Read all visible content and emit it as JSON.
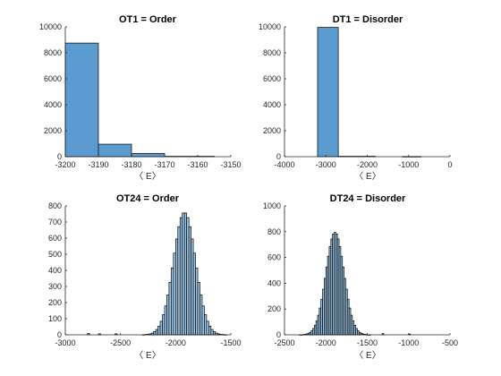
{
  "chart_data": [
    {
      "type": "bar",
      "title": "OT1 = Order",
      "xlabel": "〈 E〉",
      "ylabel": "",
      "xlim": [
        -3200,
        -3150
      ],
      "ylim": [
        0,
        10000
      ],
      "xticks": [
        -3200,
        -3190,
        -3180,
        -3170,
        -3160,
        -3150
      ],
      "yticks": [
        0,
        2000,
        4000,
        6000,
        8000,
        10000
      ],
      "bins": [
        {
          "x0": -3200,
          "x1": -3190,
          "value": 8750
        },
        {
          "x0": -3190,
          "x1": -3180,
          "value": 960
        },
        {
          "x0": -3180,
          "x1": -3170,
          "value": 250
        },
        {
          "x0": -3170,
          "x1": -3155,
          "value": 30
        }
      ],
      "color": "#5b9bd0"
    },
    {
      "type": "bar",
      "title": "DT1 = Disorder",
      "xlabel": "〈 E〉",
      "ylabel": "",
      "xlim": [
        -4000,
        0
      ],
      "ylim": [
        0,
        10000
      ],
      "xticks": [
        -4000,
        -3000,
        -2000,
        -1000,
        0
      ],
      "yticks": [
        0,
        2000,
        4000,
        6000,
        8000,
        10000
      ],
      "bins": [
        {
          "x0": -3200,
          "x1": -2700,
          "value": 9960
        },
        {
          "x0": -2700,
          "x1": -1800,
          "value": 30
        },
        {
          "x0": -1150,
          "x1": -700,
          "value": 10
        }
      ],
      "color": "#5b9bd0"
    },
    {
      "type": "bar",
      "title": "OT24 = Order",
      "xlabel": "〈 E〉",
      "ylabel": "",
      "xlim": [
        -3000,
        -1500
      ],
      "ylim": [
        0,
        800
      ],
      "xticks": [
        -3000,
        -2500,
        -2000,
        -1500
      ],
      "yticks": [
        0,
        100,
        200,
        300,
        400,
        500,
        600,
        700,
        800
      ],
      "bin_width": 20,
      "gaussian": {
        "mean": -1920,
        "sd": 100,
        "peak": 760,
        "x_from": -2420,
        "x_to": -1520
      },
      "outliers": [
        {
          "x": -2800,
          "value": 8
        },
        {
          "x": -2700,
          "value": 6
        },
        {
          "x": -2550,
          "value": 6
        }
      ],
      "color": "#9ec9ea"
    },
    {
      "type": "bar",
      "title": "DT24 = Disorder",
      "xlabel": "〈 E〉",
      "ylabel": "",
      "xlim": [
        -2500,
        -500
      ],
      "ylim": [
        0,
        1000
      ],
      "xticks": [
        -2500,
        -2000,
        -1500,
        -1000,
        -500
      ],
      "yticks": [
        0,
        200,
        400,
        600,
        800,
        1000
      ],
      "bin_width": 20,
      "gaussian": {
        "mean": -1890,
        "sd": 110,
        "peak": 795,
        "x_from": -2400,
        "x_to": -1420
      },
      "outliers": [
        {
          "x": -1320,
          "value": 10
        },
        {
          "x": -1000,
          "value": 6
        }
      ],
      "color": "#9ec9ea"
    }
  ]
}
